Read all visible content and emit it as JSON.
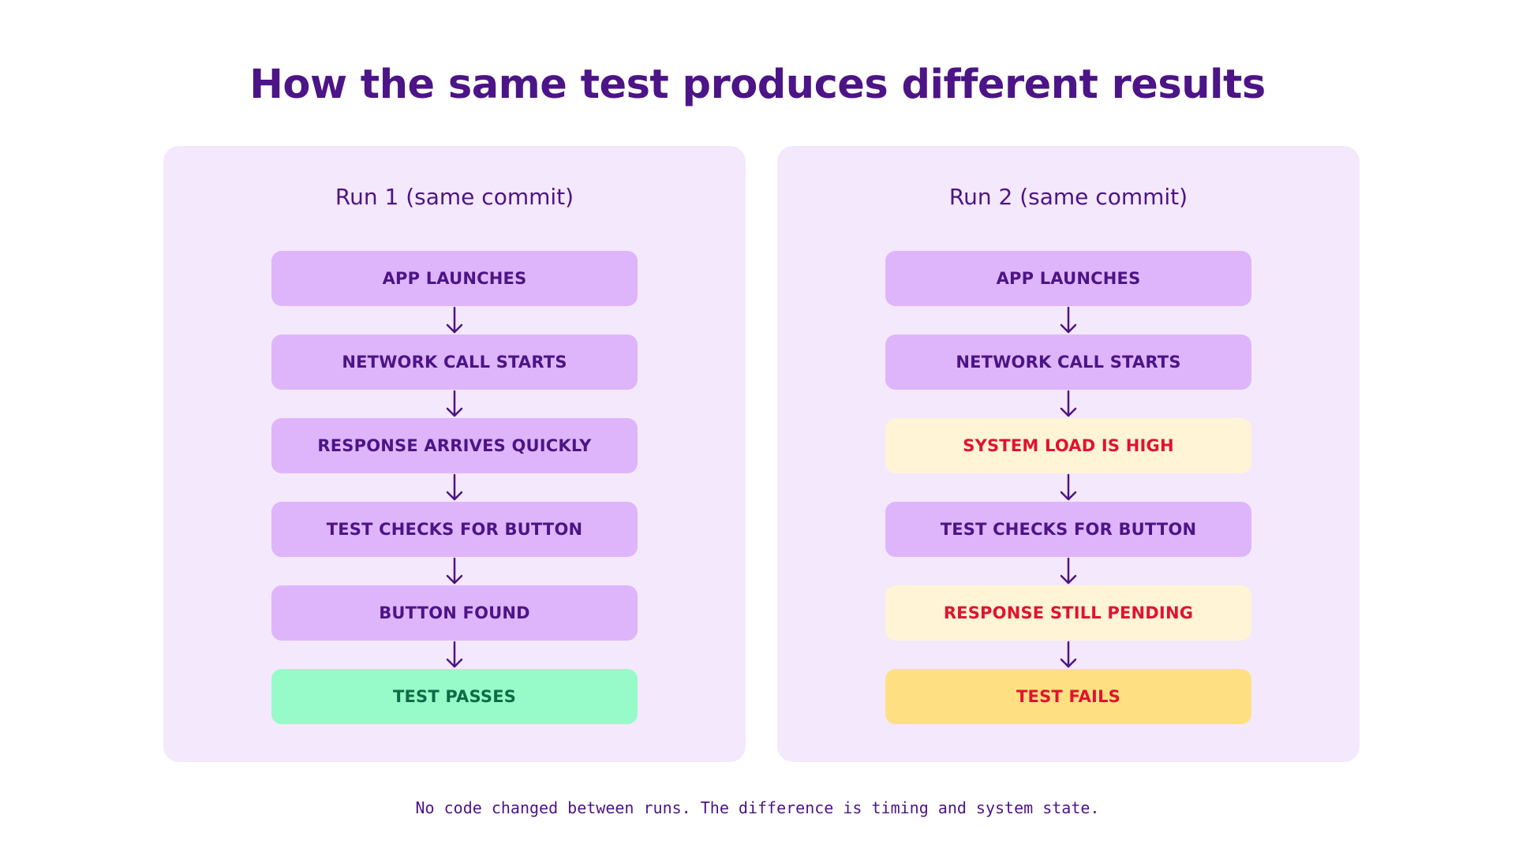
{
  "title": "How the same test produces different results",
  "runs": [
    {
      "label": "Run 1 (same commit)",
      "steps": [
        {
          "text": "APP LAUNCHES",
          "status": "normal"
        },
        {
          "text": "NETWORK CALL STARTS",
          "status": "normal"
        },
        {
          "text": "RESPONSE ARRIVES QUICKLY",
          "status": "normal"
        },
        {
          "text": "TEST CHECKS FOR BUTTON",
          "status": "normal"
        },
        {
          "text": "BUTTON FOUND",
          "status": "normal"
        },
        {
          "text": "TEST PASSES",
          "status": "pass"
        }
      ]
    },
    {
      "label": "Run 2 (same commit)",
      "steps": [
        {
          "text": "APP LAUNCHES",
          "status": "normal"
        },
        {
          "text": "NETWORK CALL STARTS",
          "status": "normal"
        },
        {
          "text": "SYSTEM LOAD IS HIGH",
          "status": "warn"
        },
        {
          "text": "TEST CHECKS FOR BUTTON",
          "status": "normal"
        },
        {
          "text": "RESPONSE STILL PENDING",
          "status": "warn"
        },
        {
          "text": "TEST FAILS",
          "status": "fail"
        }
      ]
    }
  ],
  "footnote": "No code changed between runs. The difference is timing and system state.",
  "colors": {
    "primary": "#4c1486",
    "panel": "#f4e8fc",
    "step_normal": "#deb5fb",
    "step_warning": "#fff4d6",
    "step_fail": "#fee083",
    "step_pass": "#96fbc9",
    "text_alert": "#e0132f",
    "text_pass": "#0f6b46"
  }
}
